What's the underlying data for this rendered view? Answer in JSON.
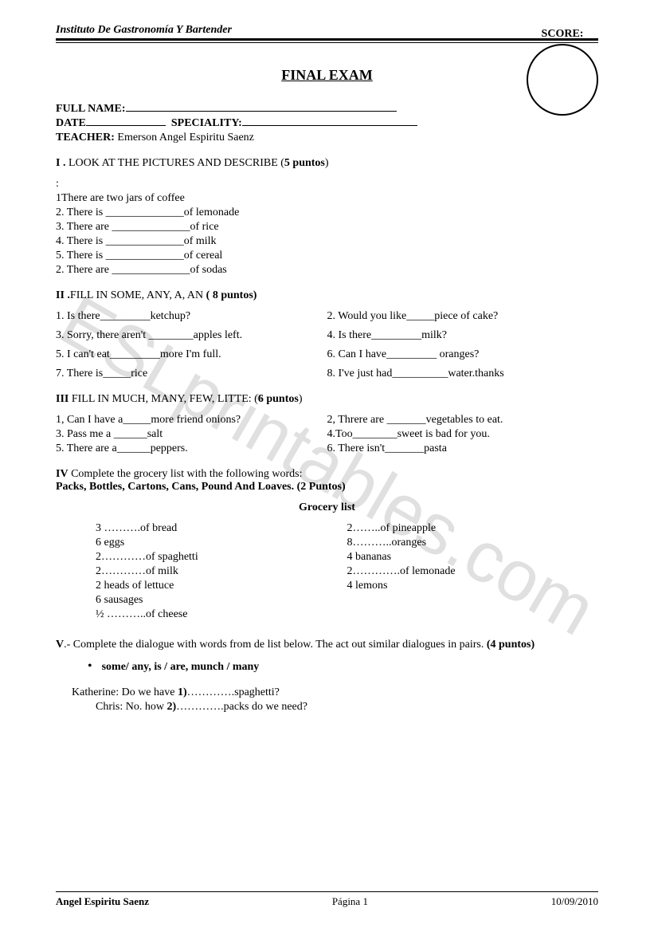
{
  "header": {
    "institute": "Instituto De Gastronomía Y Bartender",
    "score_label": "SCORE:"
  },
  "title": "FINAL  EXAM",
  "info": {
    "full_name_label": "FULL NAME:",
    "date_label": "DATE",
    "speciality_label": "SPECIALITY:",
    "teacher_label": "TEACHER:",
    "teacher_name": "Emerson  Angel Espiritu  Saenz"
  },
  "section1": {
    "heading_prefix": "I  .",
    "heading": " LOOK AT THE PICTURES AND DESCRIBE (",
    "points": "5 puntos",
    "heading_close": ")",
    "colon": ":",
    "items": [
      "1There are two jars of coffee",
      "2. There is ______________of lemonade",
      "3. There are ______________of rice",
      "4. There is ______________of milk",
      "5. There is ______________of cereal",
      "2. There are ______________of sodas"
    ]
  },
  "section2": {
    "heading_prefix": "II .",
    "heading": "FILL IN SOME, ANY, A, AN ",
    "points": " ( 8 puntos)",
    "rows": [
      {
        "l": "1. Is there_________ketchup?",
        "r": "2. Would you like_____piece of cake?"
      },
      {
        "l": "3. Sorry, there aren't ________apples left.",
        "r": "4. Is there_________milk?"
      },
      {
        "l": "5. I can't eat_________more I'm full.",
        "r": "6. Can  I have_________ oranges?"
      },
      {
        "l": " 7. There is_____rice",
        "r": "8. I've just had__________water.thanks"
      }
    ]
  },
  "section3": {
    "heading_prefix": "III",
    "heading": " FILL IN MUCH, MANY, FEW, LITTE: (",
    "points": "6 puntos",
    "heading_close": ")",
    "rows": [
      {
        "l": "1, Can I have a_____more friend onions?",
        "r": "2, Threre are _______vegetables to eat."
      },
      {
        "l": "3. Pass me a ______salt",
        "r": "4.Too________sweet is bad for you."
      },
      {
        "l": "5. There are a______peppers.",
        "r": "6. There isn't_______pasta"
      }
    ]
  },
  "section4": {
    "heading_prefix": "IV",
    "heading_line1": " Complete the grocery list with the following words:",
    "heading_line2": "Packs, Bottles, Cartons, Cans, Pound And Loaves",
    "points": ". (2 Puntos)",
    "grocery_title": "Grocery list",
    "left": [
      "3 ……….of   bread",
      "6 eggs",
      "2…………of spaghetti",
      "2…………of milk",
      "2 heads of lettuce",
      "6 sausages",
      "½ ………..of cheese"
    ],
    "right": [
      "2……..of pineapple",
      "8………..oranges",
      "4 bananas",
      "2………….of lemonade",
      "4 lemons"
    ]
  },
  "section5": {
    "heading_prefix": "V",
    "heading": ".- Complete the dialogue with words from de list below. The act out similar dialogues in pairs.  ",
    "points": "(4 puntos)",
    "bullet": "some/ any, is / are, munch / many",
    "dialogue": [
      {
        "speaker": "Katherine:",
        "text": " Do we have ",
        "num": "1)",
        "rest": "………….spaghetti?"
      },
      {
        "speaker": "Chris:",
        "text": " No. how ",
        "num": "2)",
        "rest": "………….packs do we need?"
      }
    ]
  },
  "watermark": "ESLprintables.com",
  "footer": {
    "author": "Angel Espiritu Saenz",
    "page": "Página 1",
    "date": "10/09/2010"
  }
}
